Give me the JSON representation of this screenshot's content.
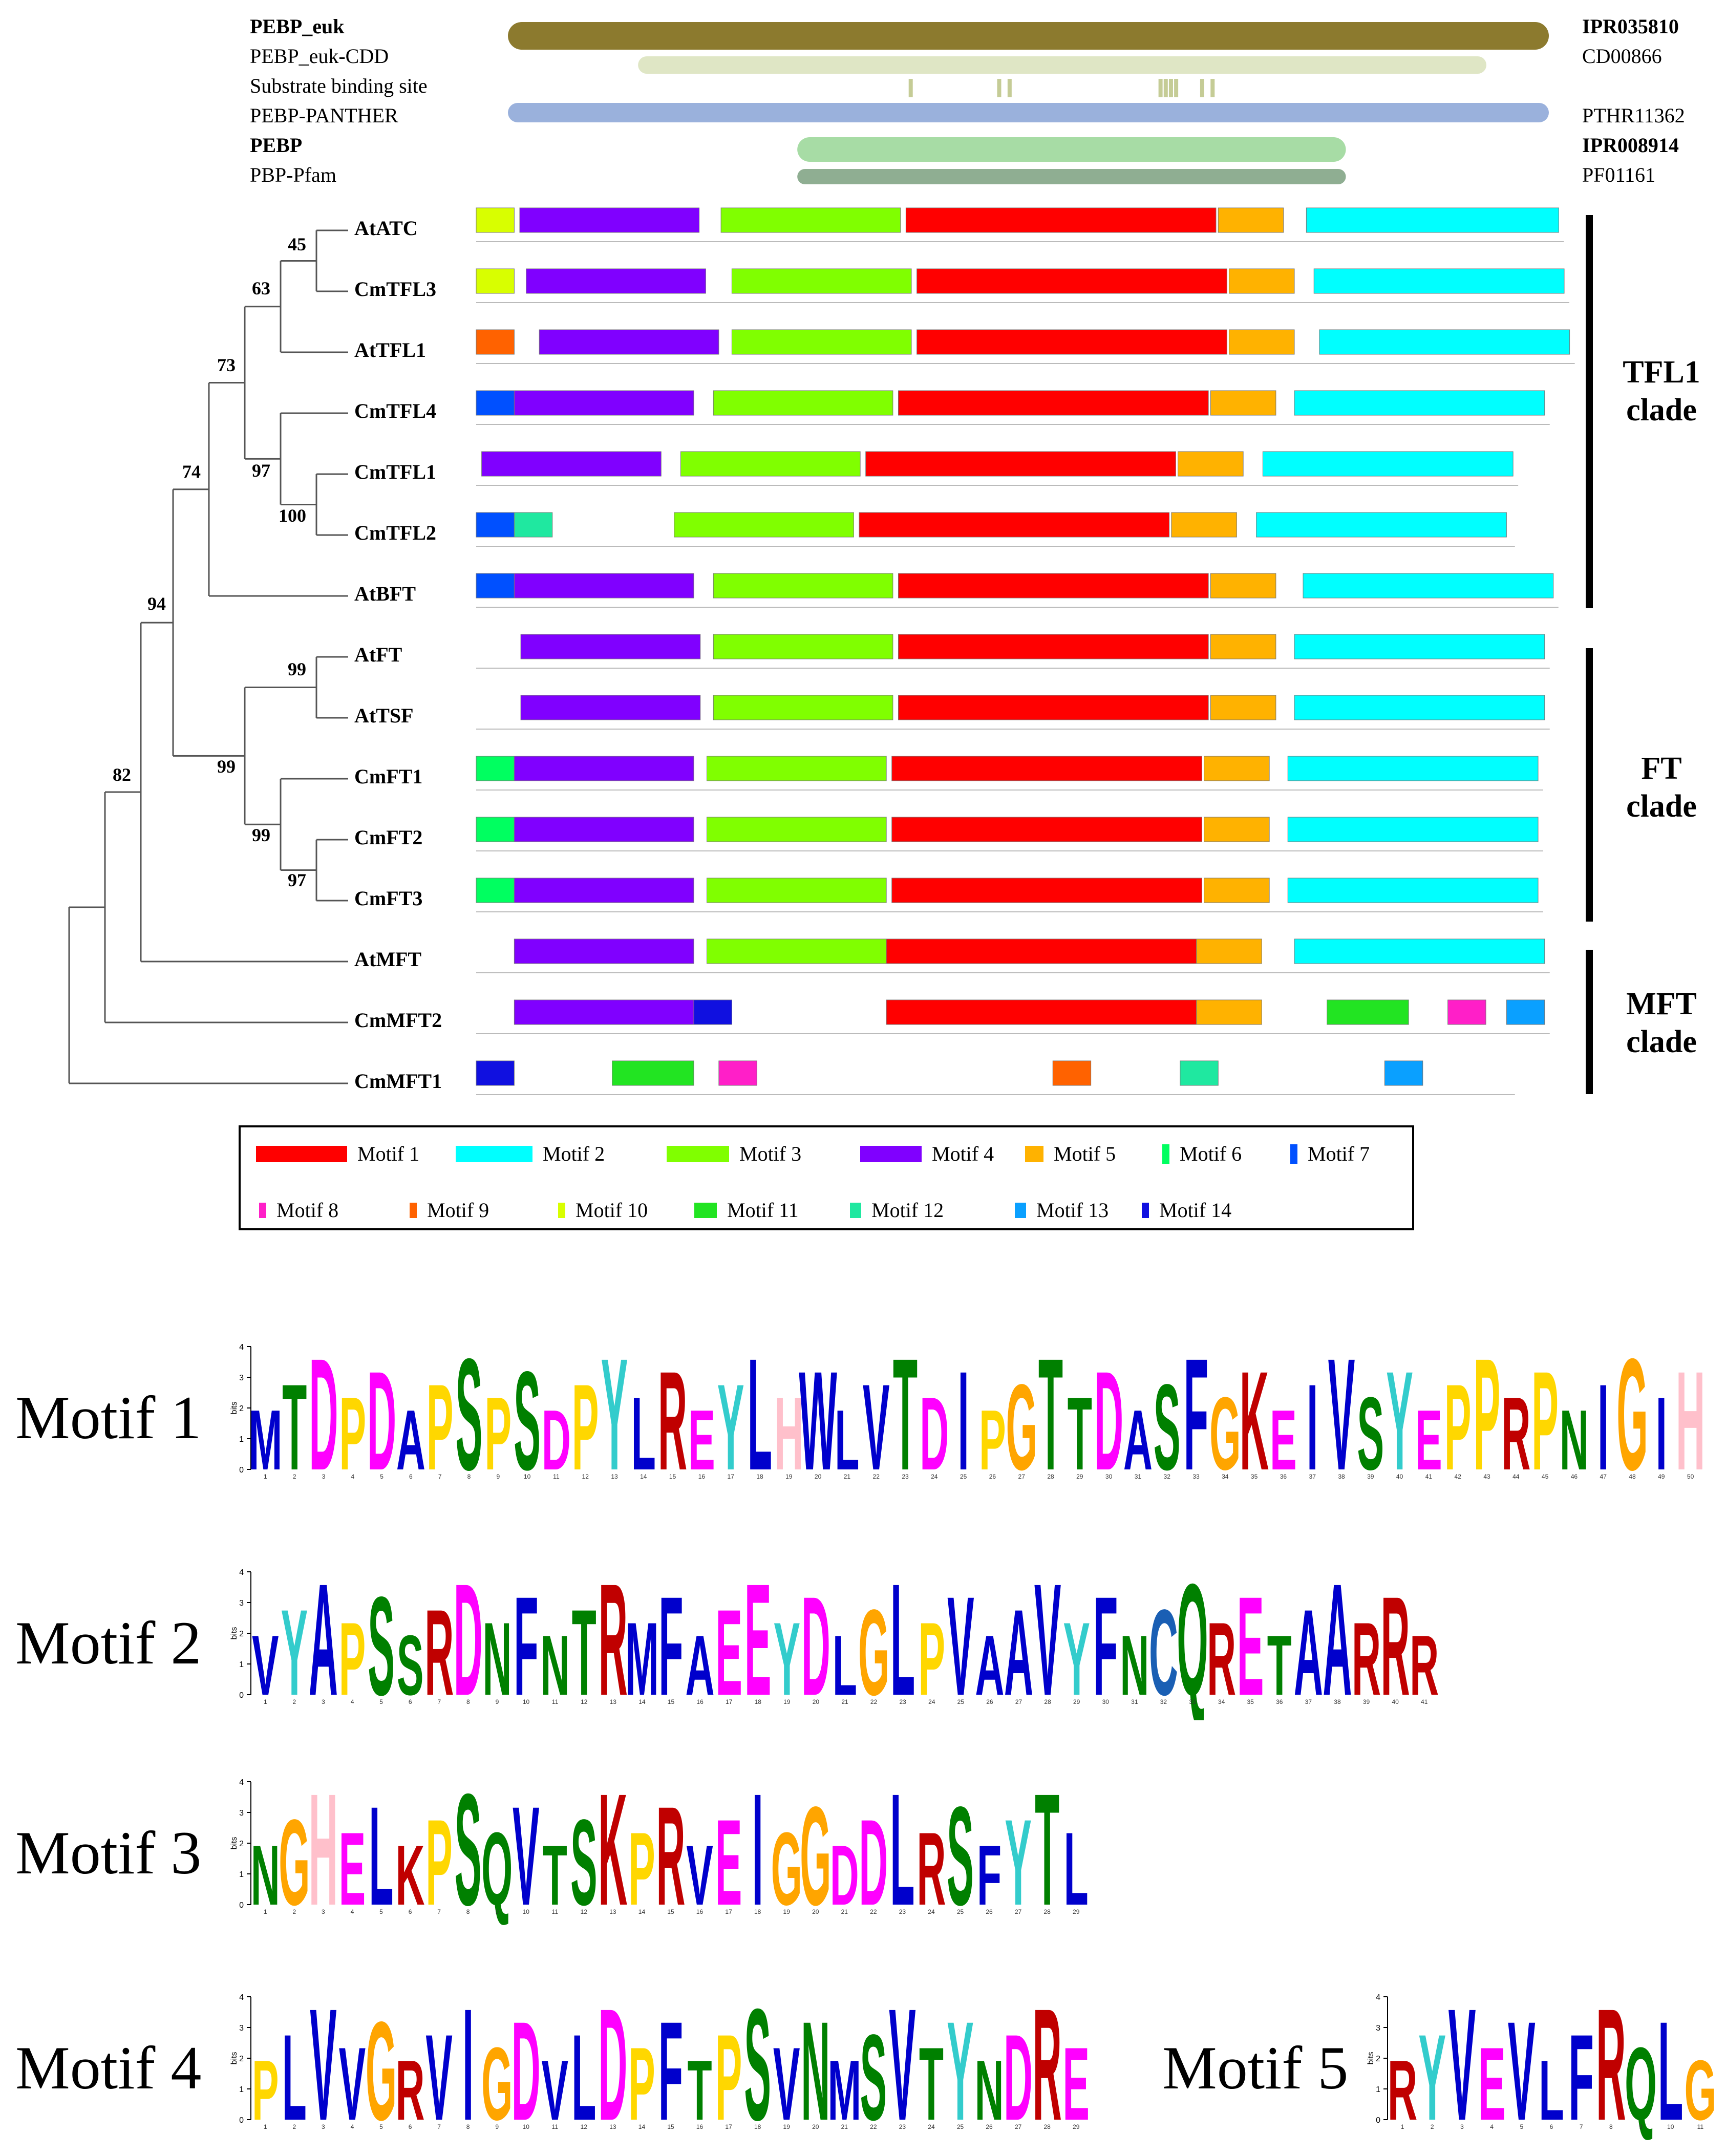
{
  "domains": {
    "rows": [
      {
        "label": "PEBP_euk",
        "bold": true,
        "id": "IPR035810",
        "color": "#8c7a2e",
        "start": 0.0,
        "end": 1.0
      },
      {
        "label": "PEBP_euk-CDD",
        "bold": false,
        "id": "CD00866",
        "color": "#dfe6c5",
        "start": 0.125,
        "end": 0.94
      },
      {
        "label": "Substrate binding site",
        "bold": false,
        "id": "",
        "color": "#c5cc96",
        "ticks": [
          0.385,
          0.47,
          0.48,
          0.625,
          0.63,
          0.635,
          0.64,
          0.665,
          0.675
        ]
      },
      {
        "label": "PEBP-PANTHER",
        "bold": false,
        "id": "PTHR11362",
        "color": "#9ab1dc",
        "start": 0.0,
        "end": 1.0
      },
      {
        "label": "PEBP",
        "bold": true,
        "id": "IPR008914",
        "color": "#a7dca5",
        "start": 0.278,
        "end": 0.805
      },
      {
        "label": "PBP-Pfam",
        "bold": false,
        "id": "PF01161",
        "color": "#8fae92",
        "start": 0.278,
        "end": 0.805
      }
    ]
  },
  "tree": {
    "genes": [
      "AtATC",
      "CmTFL3",
      "AtTFL1",
      "CmTFL4",
      "CmTFL1",
      "CmTFL2",
      "AtBFT",
      "AtFT",
      "AtTSF",
      "CmFT1",
      "CmFT2",
      "CmFT3",
      "AtMFT",
      "CmMFT2",
      "CmMFT1"
    ],
    "bootstraps": [
      "45",
      "63",
      "73",
      "97",
      "100",
      "74",
      "94",
      "99",
      "99",
      "99",
      "97",
      "82"
    ]
  },
  "clades": [
    {
      "line1": "TFL1",
      "line2": "clade"
    },
    {
      "line1": "FT",
      "line2": "clade"
    },
    {
      "line1": "MFT",
      "line2": "clade"
    }
  ],
  "motif_colors": {
    "1": "#ff0000",
    "2": "#00ffff",
    "3": "#80ff00",
    "4": "#8000ff",
    "5": "#ffb200",
    "6": "#00ff60",
    "7": "#0050ff",
    "8": "#ff1fc8",
    "9": "#ff6200",
    "10": "#d8ff00",
    "11": "#22e422",
    "12": "#1fe8a0",
    "13": "#0aa0ff",
    "14": "#1010e0"
  },
  "motif_tracks": [
    [
      [
        10,
        0.0,
        0.035
      ],
      [
        4,
        0.04,
        0.205
      ],
      [
        3,
        0.225,
        0.39
      ],
      [
        1,
        0.395,
        0.68
      ],
      [
        5,
        0.682,
        0.742
      ],
      [
        2,
        0.763,
        0.995
      ]
    ],
    [
      [
        10,
        0.0,
        0.035
      ],
      [
        4,
        0.046,
        0.211
      ],
      [
        3,
        0.235,
        0.4
      ],
      [
        1,
        0.405,
        0.69
      ],
      [
        5,
        0.692,
        0.752
      ],
      [
        2,
        0.77,
        1.0
      ]
    ],
    [
      [
        9,
        0.0,
        0.035
      ],
      [
        4,
        0.058,
        0.223
      ],
      [
        3,
        0.235,
        0.4
      ],
      [
        1,
        0.405,
        0.69
      ],
      [
        5,
        0.692,
        0.752
      ],
      [
        2,
        0.775,
        1.005
      ]
    ],
    [
      [
        7,
        0.0,
        0.035
      ],
      [
        4,
        0.035,
        0.2
      ],
      [
        3,
        0.218,
        0.383
      ],
      [
        1,
        0.388,
        0.673
      ],
      [
        5,
        0.675,
        0.735
      ],
      [
        2,
        0.752,
        0.982
      ]
    ],
    [
      [
        4,
        0.005,
        0.17
      ],
      [
        3,
        0.188,
        0.353
      ],
      [
        1,
        0.358,
        0.643
      ],
      [
        5,
        0.645,
        0.705
      ],
      [
        2,
        0.723,
        0.953
      ]
    ],
    [
      [
        7,
        0.0,
        0.035
      ],
      [
        12,
        0.035,
        0.07
      ],
      [
        3,
        0.182,
        0.347
      ],
      [
        1,
        0.352,
        0.637
      ],
      [
        5,
        0.639,
        0.699
      ],
      [
        2,
        0.717,
        0.947
      ]
    ],
    [
      [
        7,
        0.0,
        0.035
      ],
      [
        4,
        0.035,
        0.2
      ],
      [
        3,
        0.218,
        0.383
      ],
      [
        1,
        0.388,
        0.673
      ],
      [
        5,
        0.675,
        0.735
      ],
      [
        2,
        0.76,
        0.99
      ]
    ],
    [
      [
        4,
        0.041,
        0.206
      ],
      [
        3,
        0.218,
        0.383
      ],
      [
        1,
        0.388,
        0.673
      ],
      [
        5,
        0.675,
        0.735
      ],
      [
        2,
        0.752,
        0.982
      ]
    ],
    [
      [
        4,
        0.041,
        0.206
      ],
      [
        3,
        0.218,
        0.383
      ],
      [
        1,
        0.388,
        0.673
      ],
      [
        5,
        0.675,
        0.735
      ],
      [
        2,
        0.752,
        0.982
      ]
    ],
    [
      [
        6,
        0.0,
        0.035
      ],
      [
        4,
        0.035,
        0.2
      ],
      [
        3,
        0.212,
        0.377
      ],
      [
        1,
        0.382,
        0.667
      ],
      [
        5,
        0.669,
        0.729
      ],
      [
        2,
        0.746,
        0.976
      ]
    ],
    [
      [
        6,
        0.0,
        0.035
      ],
      [
        4,
        0.035,
        0.2
      ],
      [
        3,
        0.212,
        0.377
      ],
      [
        1,
        0.382,
        0.667
      ],
      [
        5,
        0.669,
        0.729
      ],
      [
        2,
        0.746,
        0.976
      ]
    ],
    [
      [
        6,
        0.0,
        0.035
      ],
      [
        4,
        0.035,
        0.2
      ],
      [
        3,
        0.212,
        0.377
      ],
      [
        1,
        0.382,
        0.667
      ],
      [
        5,
        0.669,
        0.729
      ],
      [
        2,
        0.746,
        0.976
      ]
    ],
    [
      [
        4,
        0.035,
        0.2
      ],
      [
        3,
        0.212,
        0.377
      ],
      [
        1,
        0.377,
        0.662
      ],
      [
        5,
        0.662,
        0.722
      ],
      [
        2,
        0.752,
        0.982
      ]
    ],
    [
      [
        4,
        0.035,
        0.2
      ],
      [
        14,
        0.2,
        0.235
      ],
      [
        1,
        0.377,
        0.662
      ],
      [
        5,
        0.662,
        0.722
      ],
      [
        11,
        0.782,
        0.857
      ],
      [
        8,
        0.893,
        0.928
      ],
      [
        13,
        0.947,
        0.982
      ]
    ],
    [
      [
        14,
        0.0,
        0.035
      ],
      [
        11,
        0.125,
        0.2
      ],
      [
        8,
        0.223,
        0.258
      ],
      [
        9,
        0.53,
        0.565
      ],
      [
        12,
        0.647,
        0.682
      ],
      [
        13,
        0.835,
        0.87
      ]
    ]
  ],
  "legend": [
    {
      "motif": "1",
      "label": "Motif 1"
    },
    {
      "motif": "2",
      "label": "Motif 2"
    },
    {
      "motif": "3",
      "label": "Motif 3"
    },
    {
      "motif": "4",
      "label": "Motif 4"
    },
    {
      "motif": "5",
      "label": "Motif 5"
    },
    {
      "motif": "6",
      "label": "Motif 6"
    },
    {
      "motif": "7",
      "label": "Motif 7"
    },
    {
      "motif": "8",
      "label": "Motif 8"
    },
    {
      "motif": "9",
      "label": "Motif 9"
    },
    {
      "motif": "10",
      "label": "Motif 10"
    },
    {
      "motif": "11",
      "label": "Motif 11"
    },
    {
      "motif": "12",
      "label": "Motif 12"
    },
    {
      "motif": "13",
      "label": "Motif 13"
    },
    {
      "motif": "14",
      "label": "Motif 14"
    }
  ],
  "logos": [
    {
      "name": "Motif 1",
      "axis_label": "bits",
      "ticks": [
        "0",
        "1",
        "2",
        "3",
        "4"
      ],
      "seq": "MTDPDAPSPSDPYLREYLHWLVTDIPGTTDASFGKEIVSYEPPRPNIGIH"
    },
    {
      "name": "Motif 2",
      "axis_label": "bits",
      "ticks": [
        "0",
        "1",
        "2",
        "3",
        "4"
      ],
      "seq": "VYAPSSRDNFNTRMFAEEYDLGLPVAAVYFNCQRETAARRR"
    },
    {
      "name": "Motif 3",
      "axis_label": "bits",
      "ticks": [
        "0",
        "1",
        "2",
        "3",
        "4"
      ],
      "seq": "NGHELKPSQVTSKPRVEIGGDDLRSFYTL"
    },
    {
      "name": "Motif 4",
      "axis_label": "bits",
      "ticks": [
        "0",
        "1",
        "2",
        "3",
        "4"
      ],
      "seq": "PLVVGRVIGDVLDPFTPSVNMSVTYNDRE"
    },
    {
      "name": "Motif 5",
      "axis_label": "bits",
      "ticks": [
        "0",
        "1",
        "2",
        "3",
        "4"
      ],
      "seq": "RYVEVLFRQLG"
    }
  ]
}
